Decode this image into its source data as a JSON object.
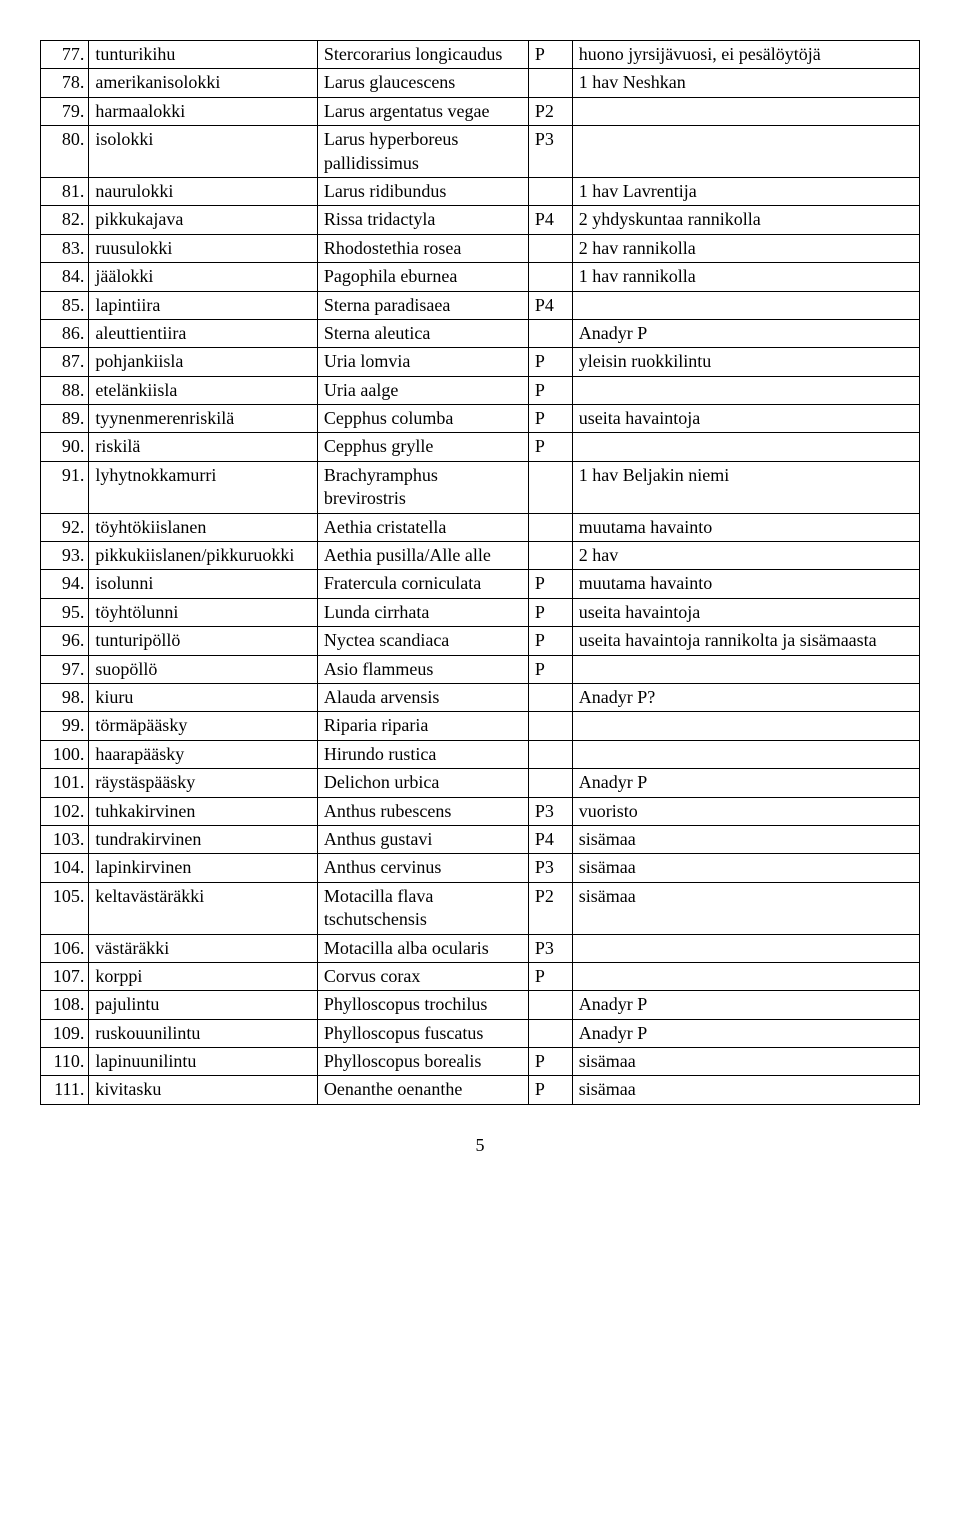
{
  "pageNumber": "5",
  "table": {
    "columns": [
      "no",
      "finnish_name",
      "scientific_name",
      "code",
      "note"
    ],
    "rows": [
      [
        "77.",
        "tunturikihu",
        "Stercorarius longicaudus",
        "P",
        "huono jyrsijävuosi, ei pesälöytöjä"
      ],
      [
        "78.",
        "amerikanisolokki",
        "Larus glaucescens",
        "",
        "1 hav Neshkan"
      ],
      [
        "79.",
        "harmaalokki",
        "Larus argentatus vegae",
        "P2",
        ""
      ],
      [
        "80.",
        "isolokki",
        "Larus hyperboreus pallidissimus",
        "P3",
        ""
      ],
      [
        "81.",
        "naurulokki",
        "Larus ridibundus",
        "",
        "1 hav Lavrentija"
      ],
      [
        "82.",
        "pikkukajava",
        "Rissa tridactyla",
        "P4",
        "2 yhdyskuntaa rannikolla"
      ],
      [
        "83.",
        "ruusulokki",
        "Rhodostethia rosea",
        "",
        "2 hav rannikolla"
      ],
      [
        "84.",
        "jäälokki",
        "Pagophila eburnea",
        "",
        "1 hav rannikolla"
      ],
      [
        "85.",
        "lapintiira",
        "Sterna paradisaea",
        "P4",
        ""
      ],
      [
        "86.",
        "aleuttientiira",
        "Sterna aleutica",
        "",
        "Anadyr P"
      ],
      [
        "87.",
        "pohjankiisla",
        "Uria lomvia",
        "P",
        "yleisin ruokkilintu"
      ],
      [
        "88.",
        "etelänkiisla",
        "Uria aalge",
        "P",
        ""
      ],
      [
        "89.",
        "tyynenmerenriskilä",
        "Cepphus columba",
        "P",
        "useita havaintoja"
      ],
      [
        "90.",
        "riskilä",
        "Cepphus grylle",
        "P",
        ""
      ],
      [
        "91.",
        "lyhytnokkamurri",
        "Brachyramphus brevirostris",
        "",
        "1 hav Beljakin niemi"
      ],
      [
        "92.",
        "töyhtökiislanen",
        "Aethia cristatella",
        "",
        "muutama havainto"
      ],
      [
        "93.",
        "pikkukiislanen/pikkuruokki",
        "Aethia pusilla/Alle alle",
        "",
        "2 hav"
      ],
      [
        "94.",
        "isolunni",
        "Fratercula corniculata",
        "P",
        "muutama havainto"
      ],
      [
        "95.",
        "töyhtölunni",
        "Lunda cirrhata",
        "P",
        "useita havaintoja"
      ],
      [
        "96.",
        "tunturipöllö",
        "Nyctea scandiaca",
        "P",
        "useita havaintoja rannikolta ja sisämaasta"
      ],
      [
        "97.",
        "suopöllö",
        "Asio flammeus",
        "P",
        ""
      ],
      [
        "98.",
        "kiuru",
        "Alauda arvensis",
        "",
        "Anadyr P?"
      ],
      [
        "99.",
        "törmäpääsky",
        "Riparia riparia",
        "",
        ""
      ],
      [
        "100.",
        "haarapääsky",
        "Hirundo rustica",
        "",
        ""
      ],
      [
        "101.",
        "räystäspääsky",
        "Delichon urbica",
        "",
        "Anadyr P"
      ],
      [
        "102.",
        "tuhkakirvinen",
        "Anthus rubescens",
        "P3",
        "vuoristo"
      ],
      [
        "103.",
        "tundrakirvinen",
        "Anthus gustavi",
        "P4",
        "sisämaa"
      ],
      [
        "104.",
        "lapinkirvinen",
        "Anthus cervinus",
        "P3",
        "sisämaa"
      ],
      [
        "105.",
        "keltavästäräkki",
        "Motacilla flava tschutschensis",
        "P2",
        "sisämaa"
      ],
      [
        "106.",
        "västäräkki",
        "Motacilla alba ocularis",
        "P3",
        ""
      ],
      [
        "107.",
        "korppi",
        "Corvus corax",
        "P",
        ""
      ],
      [
        "108.",
        "pajulintu",
        "Phylloscopus trochilus",
        "",
        "Anadyr P"
      ],
      [
        "109.",
        "ruskouunilintu",
        "Phylloscopus fuscatus",
        "",
        "Anadyr P"
      ],
      [
        "110.",
        "lapinuunilintu",
        "Phylloscopus borealis",
        "P",
        "sisämaa"
      ],
      [
        "111.",
        "kivitasku",
        "Oenanthe oenanthe",
        "P",
        "sisämaa"
      ]
    ]
  }
}
